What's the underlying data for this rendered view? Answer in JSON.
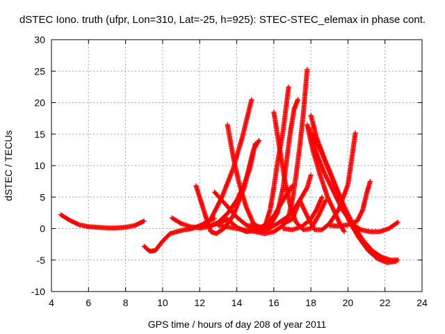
{
  "chart_data": {
    "type": "scatter",
    "title": "dSTEC Iono. truth (ufpr, Lon=310, Lat=-25, h=925): STEC-STEC_elemax in phase cont.",
    "xlabel": "GPS time / hours of day 208 of year 2011",
    "ylabel": "dSTEC  / TECUs",
    "xlim": [
      4,
      24
    ],
    "ylim": [
      -10,
      30
    ],
    "xticks": [
      "4",
      "6",
      "8",
      "10",
      "12",
      "14",
      "16",
      "18",
      "20",
      "22",
      "24"
    ],
    "yticks": [
      "-10",
      "-5",
      "0",
      "5",
      "10",
      "15",
      "20",
      "25",
      "30"
    ],
    "grid": true,
    "marker": "+",
    "color": "#ff0000",
    "series": [
      {
        "points": [
          [
            4.5,
            2.2
          ],
          [
            5.0,
            1.3
          ],
          [
            5.5,
            0.6
          ],
          [
            6.0,
            0.3
          ],
          [
            6.5,
            0.2
          ],
          [
            7.0,
            0.1
          ],
          [
            7.5,
            0.1
          ],
          [
            8.0,
            0.2
          ],
          [
            8.5,
            0.5
          ],
          [
            9.0,
            1.2
          ]
        ]
      },
      {
        "points": [
          [
            9.0,
            -2.8
          ],
          [
            9.3,
            -3.6
          ],
          [
            9.6,
            -3.5
          ],
          [
            10.0,
            -2.0
          ],
          [
            10.4,
            -0.8
          ],
          [
            11.0,
            -0.3
          ],
          [
            11.6,
            0.0
          ],
          [
            12.1,
            0.6
          ],
          [
            12.5,
            1.2
          ],
          [
            12.8,
            1.6
          ]
        ]
      },
      {
        "points": [
          [
            10.5,
            1.7
          ],
          [
            11.0,
            0.8
          ],
          [
            11.5,
            0.3
          ],
          [
            12.0,
            0.1
          ],
          [
            12.5,
            0.3
          ],
          [
            13.0,
            1.0
          ],
          [
            13.5,
            2.4
          ],
          [
            14.0,
            4.5
          ],
          [
            14.4,
            7.0
          ],
          [
            14.7,
            9.5
          ],
          [
            15.0,
            13.5
          ]
        ]
      },
      {
        "points": [
          [
            11.8,
            6.8
          ],
          [
            12.1,
            4.0
          ],
          [
            12.4,
            1.2
          ],
          [
            12.6,
            -0.5
          ],
          [
            12.9,
            -0.8
          ],
          [
            13.3,
            0.0
          ],
          [
            13.8,
            2.0
          ],
          [
            14.4,
            6.5
          ],
          [
            14.9,
            12.5
          ],
          [
            15.2,
            14.0
          ]
        ]
      },
      {
        "points": [
          [
            12.5,
            0.4
          ],
          [
            13.0,
            0.8
          ],
          [
            13.5,
            1.5
          ],
          [
            14.0,
            0.2
          ],
          [
            14.5,
            -0.5
          ],
          [
            15.0,
            -0.3
          ]
        ]
      },
      {
        "points": [
          [
            12.1,
            0.2
          ],
          [
            12.6,
            1.5
          ],
          [
            13.2,
            5.0
          ],
          [
            13.8,
            9.5
          ],
          [
            14.3,
            14.5
          ],
          [
            14.8,
            20.5
          ]
        ]
      },
      {
        "points": [
          [
            12.8,
            5.8
          ],
          [
            13.5,
            3.5
          ],
          [
            14.0,
            1.8
          ],
          [
            14.5,
            0.6
          ],
          [
            15.0,
            -0.1
          ],
          [
            15.5,
            0.5
          ],
          [
            16.0,
            2.0
          ],
          [
            16.5,
            4.5
          ],
          [
            17.0,
            6.8
          ]
        ]
      },
      {
        "points": [
          [
            13.5,
            16.5
          ],
          [
            13.8,
            11.5
          ],
          [
            14.1,
            7.5
          ],
          [
            14.5,
            3.5
          ],
          [
            14.9,
            0.8
          ],
          [
            15.2,
            -0.4
          ],
          [
            15.5,
            0.2
          ],
          [
            15.8,
            3.0
          ],
          [
            16.0,
            6.5
          ],
          [
            16.2,
            10.5
          ],
          [
            16.5,
            15.5
          ],
          [
            16.8,
            22.5
          ]
        ]
      },
      {
        "points": [
          [
            13.0,
            0.5
          ],
          [
            14.0,
            0.0
          ],
          [
            15.0,
            -0.5
          ],
          [
            15.5,
            -0.8
          ],
          [
            16.0,
            -0.5
          ],
          [
            16.5,
            0.5
          ],
          [
            16.8,
            2.0
          ],
          [
            17.0,
            4.5
          ],
          [
            17.2,
            8.5
          ],
          [
            17.4,
            13.0
          ],
          [
            17.6,
            18.5
          ],
          [
            17.8,
            25.3
          ]
        ]
      },
      {
        "points": [
          [
            14.8,
            0.8
          ],
          [
            15.3,
            0.2
          ],
          [
            15.8,
            0.5
          ],
          [
            16.2,
            2.5
          ],
          [
            16.5,
            6.5
          ],
          [
            16.7,
            11.0
          ],
          [
            16.9,
            15.5
          ],
          [
            17.1,
            19.0
          ],
          [
            17.3,
            20.5
          ]
        ]
      },
      {
        "points": [
          [
            15.0,
            -0.3
          ],
          [
            15.6,
            -0.2
          ],
          [
            16.2,
            0.8
          ],
          [
            16.8,
            2.0
          ],
          [
            17.3,
            4.0
          ],
          [
            17.8,
            6.5
          ],
          [
            18.0,
            8.5
          ]
        ]
      },
      {
        "points": [
          [
            16.0,
            18.5
          ],
          [
            16.3,
            13.0
          ],
          [
            16.6,
            7.5
          ],
          [
            16.9,
            3.5
          ],
          [
            17.2,
            1.0
          ],
          [
            17.6,
            -0.2
          ],
          [
            18.0,
            0.0
          ],
          [
            18.4,
            2.0
          ],
          [
            18.8,
            4.5
          ]
        ]
      },
      {
        "points": [
          [
            17.8,
            16.5
          ],
          [
            18.1,
            12.5
          ],
          [
            18.5,
            8.5
          ],
          [
            18.9,
            5.0
          ],
          [
            19.3,
            2.5
          ],
          [
            19.6,
            0.5
          ],
          [
            19.8,
            -0.5
          ]
        ]
      },
      {
        "points": [
          [
            17.9,
            16.0
          ],
          [
            18.3,
            12.0
          ],
          [
            18.7,
            9.0
          ],
          [
            19.2,
            6.0
          ],
          [
            19.7,
            3.0
          ],
          [
            20.2,
            0.8
          ],
          [
            20.7,
            -0.2
          ],
          [
            21.2,
            -0.5
          ],
          [
            21.7,
            -0.5
          ],
          [
            22.2,
            0.0
          ],
          [
            22.7,
            1.0
          ]
        ]
      },
      {
        "points": [
          [
            18.1,
            15.0
          ],
          [
            18.6,
            12.0
          ],
          [
            19.1,
            8.5
          ],
          [
            19.6,
            4.5
          ],
          [
            20.1,
            1.0
          ],
          [
            20.6,
            -1.5
          ],
          [
            21.1,
            -3.5
          ],
          [
            21.6,
            -4.8
          ],
          [
            22.1,
            -5.4
          ],
          [
            22.6,
            -5.2
          ]
        ]
      },
      {
        "points": [
          [
            18.0,
            18.0
          ],
          [
            18.3,
            14.5
          ],
          [
            18.8,
            10.5
          ],
          [
            19.3,
            7.0
          ],
          [
            19.8,
            3.5
          ],
          [
            20.3,
            0.5
          ],
          [
            20.8,
            -1.8
          ],
          [
            21.3,
            -3.5
          ],
          [
            21.8,
            -4.5
          ],
          [
            22.3,
            -5.0
          ],
          [
            22.7,
            -5.0
          ]
        ]
      },
      {
        "points": [
          [
            16.5,
            0.8
          ],
          [
            17.0,
            1.5
          ],
          [
            17.4,
            4.5
          ],
          [
            17.8,
            2.0
          ],
          [
            18.2,
            -0.2
          ],
          [
            18.6,
            -0.2
          ],
          [
            19.0,
            0.8
          ],
          [
            19.5,
            3.0
          ],
          [
            20.0,
            7.0
          ],
          [
            20.2,
            11.0
          ],
          [
            20.4,
            15.2
          ]
        ]
      },
      {
        "points": [
          [
            19.0,
            0.5
          ],
          [
            19.5,
            0.4
          ],
          [
            20.0,
            0.6
          ],
          [
            20.5,
            1.2
          ],
          [
            20.8,
            3.0
          ],
          [
            21.0,
            5.5
          ],
          [
            21.2,
            7.5
          ]
        ]
      },
      {
        "points": [
          [
            16.5,
            0.0
          ],
          [
            17.0,
            -0.2
          ],
          [
            17.5,
            0.3
          ],
          [
            18.0,
            1.5
          ],
          [
            18.3,
            3.0
          ],
          [
            18.6,
            5.0
          ]
        ]
      }
    ]
  }
}
